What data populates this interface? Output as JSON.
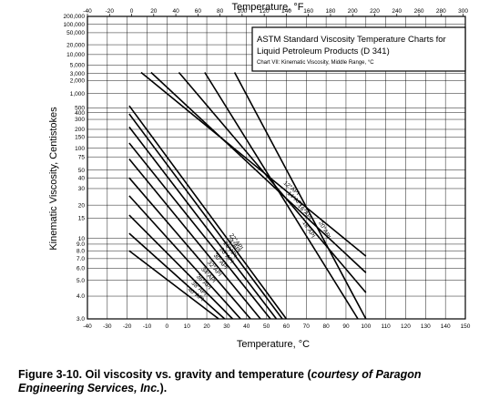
{
  "chart_data": {
    "type": "line",
    "title": "Temperature, °F",
    "xlabel": "Temperature, °C",
    "ylabel": "Kinematic Viscosity, Centistokes",
    "xlim": [
      -40,
      150
    ],
    "x_ticks": [
      "-40",
      "-30",
      "-20",
      "-10",
      "0",
      "10",
      "20",
      "30",
      "40",
      "50",
      "60",
      "70",
      "80",
      "90",
      "100",
      "110",
      "120",
      "130",
      "140",
      "150"
    ],
    "top_xlim": [
      -40,
      302
    ],
    "top_ticks": [
      "-40",
      "-20",
      "0",
      "20",
      "40",
      "60",
      "80",
      "100",
      "120",
      "140",
      "160",
      "180",
      "200",
      "220",
      "240",
      "260",
      "280",
      "300"
    ],
    "yscale": "viscosity (ASTM D341)",
    "ylim": [
      3.0,
      200000
    ],
    "y_ticks": [
      "3.0",
      "4.0",
      "5.0",
      "6.0",
      "7.0",
      "8.0",
      "9.0",
      "10",
      "15",
      "20",
      "30",
      "40",
      "50",
      "75",
      "100",
      "150",
      "200",
      "300",
      "400",
      "500",
      "1,000",
      "2,000",
      "3,000",
      "5,000",
      "10,000",
      "20,000",
      "50,000",
      "100,000",
      "200,000"
    ],
    "grid": true,
    "annotation": {
      "title_line1": "ASTM Standard Viscosity Temperature Charts for",
      "title_line2": "Liquid Petroleum Products (D 341)",
      "subtitle": "Chart VII: Kinematic Viscosity, Middle Range, °C"
    },
    "series": [
      {
        "name": "12°API",
        "x": [
          -13,
          100
        ],
        "y": [
          3200,
          7.3
        ]
      },
      {
        "name": "14°API",
        "x": [
          -8,
          100
        ],
        "y": [
          3200,
          5.6
        ]
      },
      {
        "name": "16°API",
        "x": [
          6,
          100
        ],
        "y": [
          3200,
          4.2
        ]
      },
      {
        "name": "18°API",
        "x": [
          19,
          96
        ],
        "y": [
          3200,
          3.0
        ]
      },
      {
        "name": "20°API",
        "x": [
          34,
          100
        ],
        "y": [
          3200,
          3.0
        ]
      },
      {
        "name": "22°API",
        "x": [
          -19,
          60
        ],
        "y": [
          550,
          3.0
        ]
      },
      {
        "name": "24°API",
        "x": [
          -19,
          58
        ],
        "y": [
          380,
          3.0
        ]
      },
      {
        "name": "26°API",
        "x": [
          -19,
          55
        ],
        "y": [
          220,
          3.0
        ]
      },
      {
        "name": "28°API",
        "x": [
          -19,
          52
        ],
        "y": [
          120,
          3.0
        ]
      },
      {
        "name": "30°API",
        "x": [
          -19,
          47
        ],
        "y": [
          70,
          3.0
        ]
      },
      {
        "name": "32°API",
        "x": [
          -19,
          42
        ],
        "y": [
          40,
          3.0
        ]
      },
      {
        "name": "34°API",
        "x": [
          -19,
          37
        ],
        "y": [
          25,
          3.0
        ]
      },
      {
        "name": "36°API",
        "x": [
          -19,
          33
        ],
        "y": [
          16,
          3.0
        ]
      },
      {
        "name": "38°API",
        "x": [
          -19,
          29
        ],
        "y": [
          11,
          3.0
        ]
      },
      {
        "name": "40°API",
        "x": [
          -19,
          26
        ],
        "y": [
          8.0,
          3.0
        ]
      }
    ]
  },
  "caption": {
    "text": "Figure 3-10. Oil viscosity vs. gravity and temperature (",
    "italic": "courtesy of Paragon Engineering Services, Inc.",
    "end": ")."
  }
}
